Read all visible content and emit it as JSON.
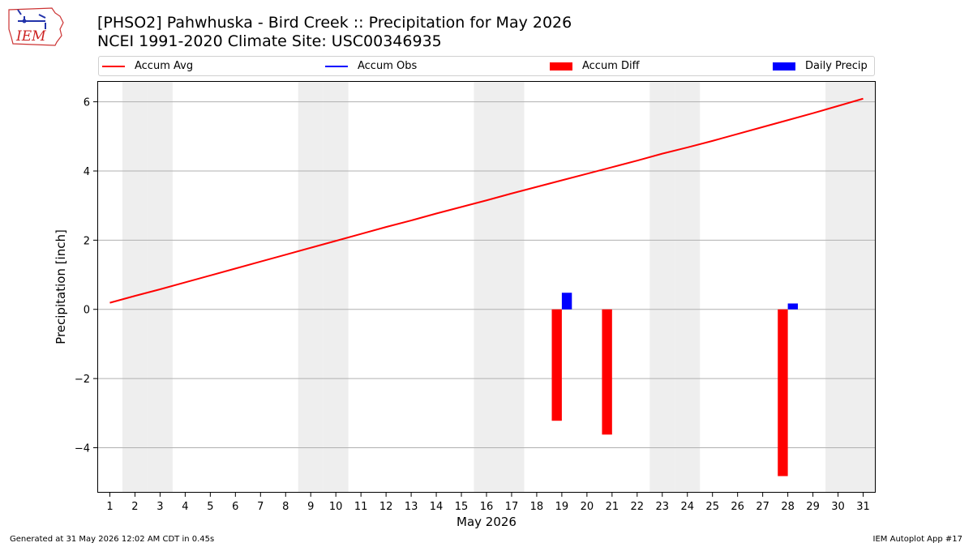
{
  "title": "[PHSO2] Pahwhuska - Bird Creek :: Precipitation for May 2026",
  "subtitle": "NCEI 1991-2020 Climate Site: USC00346935",
  "logo_text": "IEM",
  "footer_left": "Generated at 31 May 2026 12:02 AM CDT in 0.45s",
  "footer_right": "IEM Autoplot App #17",
  "colors": {
    "accum_avg": "#ff0000",
    "accum_obs": "#0000ff",
    "accum_diff": "#ff0000",
    "daily_precip": "#0000ff",
    "weekend_shade": "#eeeeee",
    "grid": "#b0b0b0"
  },
  "legend": [
    {
      "label": "Accum Avg",
      "kind": "line",
      "color": "#ff0000"
    },
    {
      "label": "Accum Obs",
      "kind": "line",
      "color": "#0000ff"
    },
    {
      "label": "Accum Diff",
      "kind": "box",
      "color": "#ff0000"
    },
    {
      "label": "Daily Precip",
      "kind": "box",
      "color": "#0000ff"
    }
  ],
  "chart_data": {
    "type": "bar",
    "xlabel": "May 2026",
    "ylabel": "Precipitation [inch]",
    "xlim": [
      0.5,
      31.5
    ],
    "ylim": [
      -5.3,
      6.6
    ],
    "yticks": [
      6,
      4,
      2,
      0,
      -2,
      -4
    ],
    "ytick_labels": [
      "6",
      "4",
      "2",
      "0",
      "−2",
      "−4"
    ],
    "days": [
      1,
      2,
      3,
      4,
      5,
      6,
      7,
      8,
      9,
      10,
      11,
      12,
      13,
      14,
      15,
      16,
      17,
      18,
      19,
      20,
      21,
      22,
      23,
      24,
      25,
      26,
      27,
      28,
      29,
      30,
      31
    ],
    "weekend_days": [
      2,
      3,
      9,
      10,
      16,
      17,
      23,
      24,
      30,
      31
    ],
    "grid": "y",
    "series": [
      {
        "name": "Accum Avg",
        "type": "line",
        "x": [
          1,
          2,
          3,
          4,
          5,
          6,
          7,
          8,
          9,
          10,
          11,
          12,
          13,
          14,
          15,
          16,
          17,
          18,
          19,
          20,
          21,
          22,
          23,
          24,
          25,
          26,
          27,
          28,
          29,
          30,
          31
        ],
        "values": [
          0.19,
          0.39,
          0.58,
          0.78,
          0.98,
          1.18,
          1.38,
          1.58,
          1.78,
          1.98,
          2.18,
          2.38,
          2.57,
          2.77,
          2.96,
          3.15,
          3.35,
          3.54,
          3.73,
          3.92,
          4.11,
          4.3,
          4.5,
          4.68,
          4.87,
          5.07,
          5.27,
          5.47,
          5.67,
          5.88,
          6.09
        ]
      },
      {
        "name": "Accum Diff",
        "type": "bar",
        "x": [
          19,
          21,
          28
        ],
        "values": [
          -3.22,
          -3.62,
          -4.82
        ]
      },
      {
        "name": "Daily Precip",
        "type": "bar",
        "x": [
          19,
          28
        ],
        "values": [
          0.48,
          0.17
        ]
      }
    ]
  }
}
